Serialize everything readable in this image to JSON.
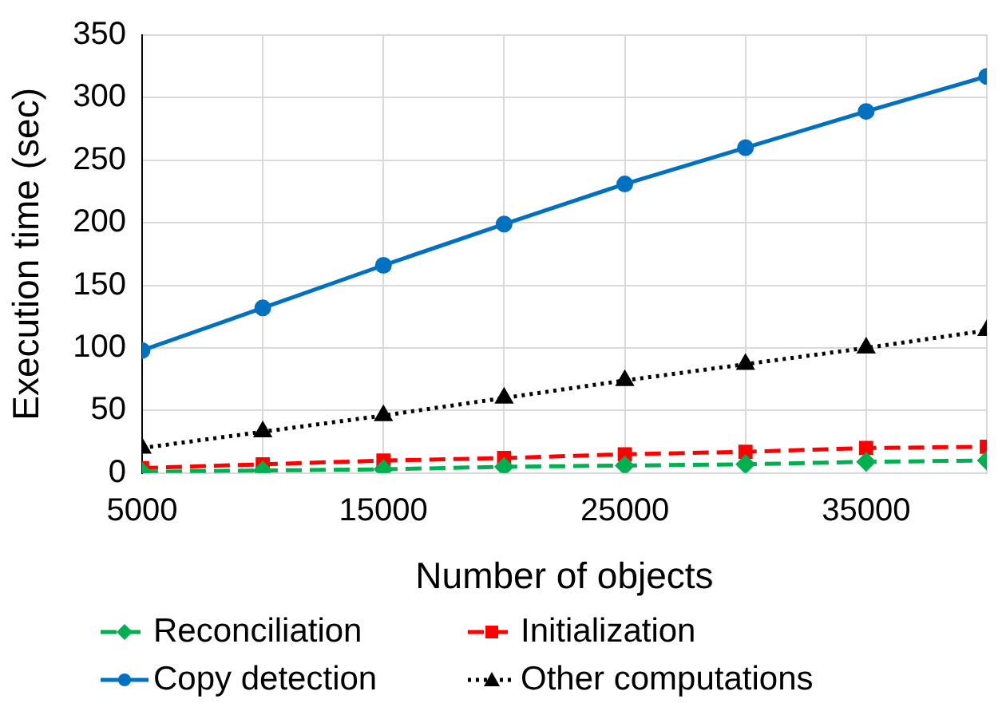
{
  "chart_data": {
    "type": "line",
    "xlabel": "Number of objects",
    "ylabel": "Execution time (sec)",
    "x": [
      5000,
      10000,
      15000,
      20000,
      25000,
      30000,
      35000,
      40000
    ],
    "xlim": [
      5000,
      40000
    ],
    "xticks": [
      5000,
      {
        "value": 10000,
        "label": null
      },
      15000,
      {
        "value": 20000,
        "label": null
      },
      25000,
      {
        "value": 30000,
        "label": null
      },
      35000,
      {
        "value": 40000,
        "label": null
      }
    ],
    "ylim": [
      0,
      350
    ],
    "yticks": [
      0,
      50,
      100,
      150,
      200,
      250,
      300,
      350
    ],
    "grid": true,
    "legend": "bottom",
    "series": [
      {
        "name": "Reconciliation",
        "color": "#00b050",
        "marker": "diamond",
        "line_style": "dashed",
        "values": [
          1,
          2,
          3,
          5,
          6,
          7,
          9,
          10
        ]
      },
      {
        "name": "Initialization",
        "color": "#ff0000",
        "marker": "square",
        "line_style": "dashed",
        "values": [
          4,
          7,
          10,
          12,
          15,
          17,
          20,
          21
        ]
      },
      {
        "name": "Copy detection",
        "color": "#0070c0",
        "marker": "circle",
        "line_style": "solid",
        "values": [
          98,
          132,
          166,
          199,
          231,
          260,
          289,
          317
        ]
      },
      {
        "name": "Other computations",
        "color": "#000000",
        "marker": "triangle",
        "line_style": "dotted",
        "values": [
          20,
          33,
          46,
          60,
          74,
          87,
          100,
          114
        ]
      }
    ]
  }
}
